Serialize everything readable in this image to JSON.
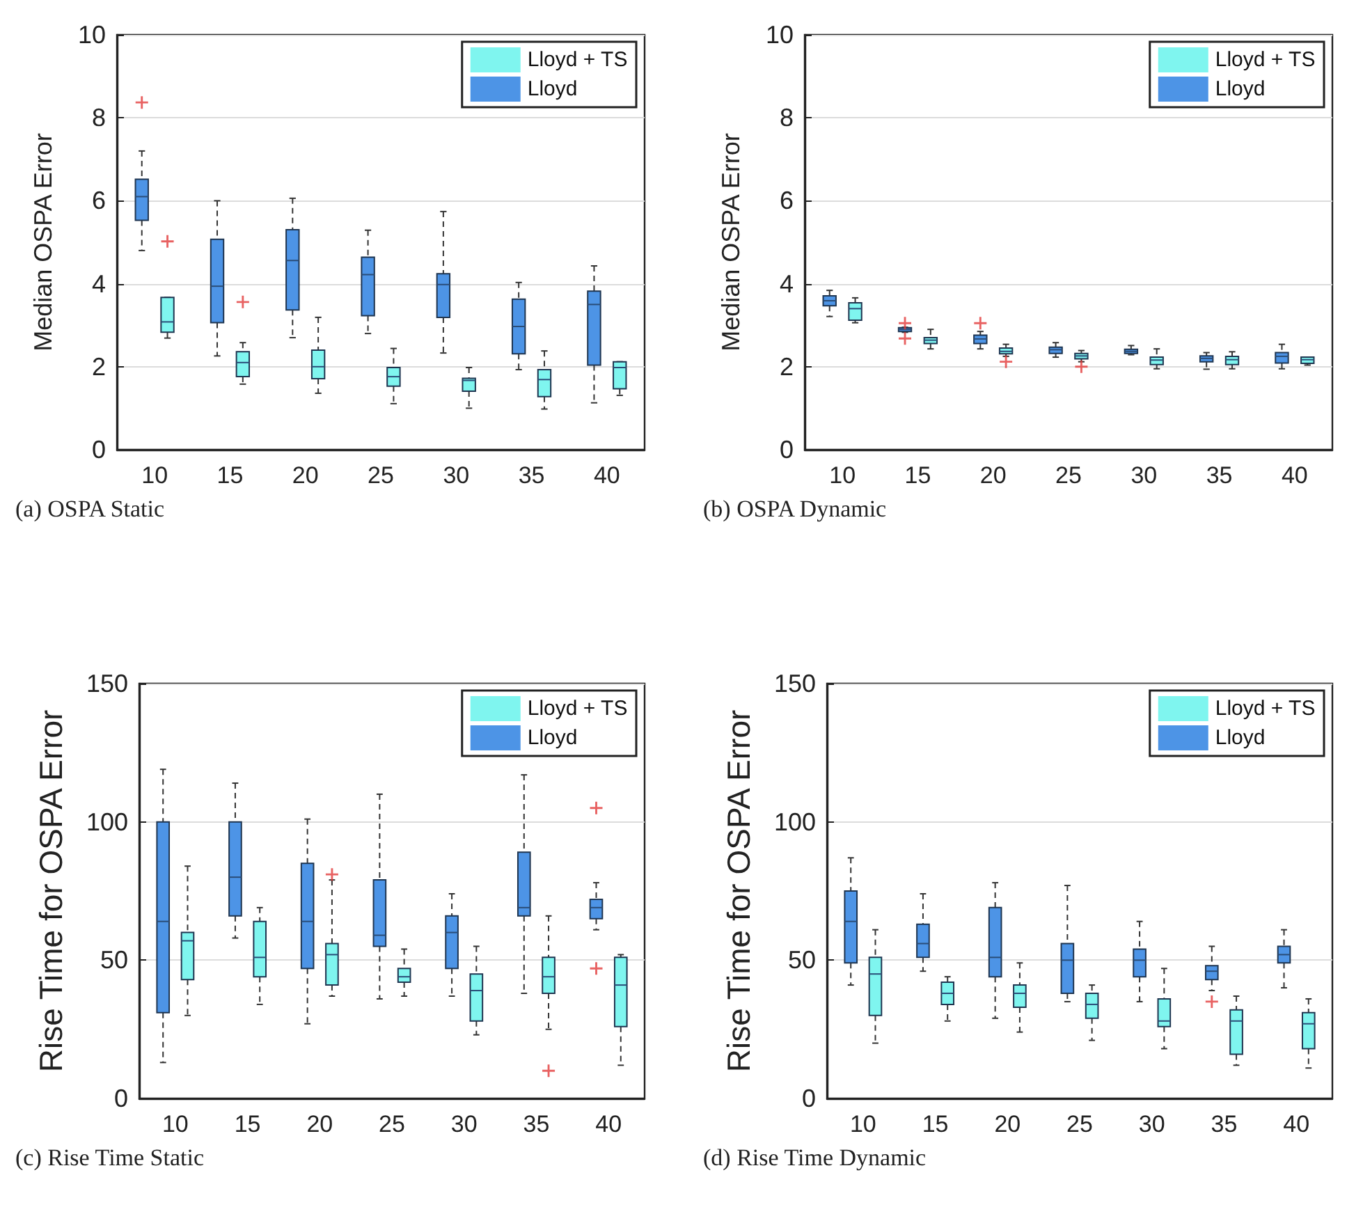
{
  "chart_data": [
    {
      "type": "box",
      "title": "(a) OSPA Static",
      "ylabel": "Median OSPA Error",
      "categories": [
        "10",
        "15",
        "20",
        "25",
        "30",
        "35",
        "40"
      ],
      "ylim": [
        0,
        10
      ],
      "yticks": [
        0,
        2,
        4,
        6,
        8,
        10
      ],
      "grid": "y",
      "legend": "top right",
      "series": [
        {
          "name": "Lloyd",
          "color": "#4d94e6",
          "boxes": [
            {
              "low": 4.8,
              "q1": 5.53,
              "median": 6.1,
              "q3": 6.52,
              "high": 7.2,
              "outliers": [
                8.37
              ]
            },
            {
              "low": 2.26,
              "q1": 3.06,
              "median": 3.94,
              "q3": 5.07,
              "high": 6.0
            },
            {
              "low": 2.7,
              "q1": 3.37,
              "median": 4.56,
              "q3": 5.3,
              "high": 6.06
            },
            {
              "low": 2.8,
              "q1": 3.23,
              "median": 4.22,
              "q3": 4.64,
              "high": 5.29
            },
            {
              "low": 2.33,
              "q1": 3.19,
              "median": 3.98,
              "q3": 4.24,
              "high": 5.74
            },
            {
              "low": 1.93,
              "q1": 2.31,
              "median": 2.97,
              "q3": 3.63,
              "high": 4.03
            },
            {
              "low": 1.13,
              "q1": 2.04,
              "median": 3.5,
              "q3": 3.82,
              "high": 4.43
            }
          ]
        },
        {
          "name": "Lloyd + TS",
          "color": "#7ff5ef",
          "boxes": [
            {
              "low": 2.69,
              "q1": 2.83,
              "median": 3.08,
              "q3": 3.67,
              "high": 3.67,
              "outliers": [
                5.02
              ]
            },
            {
              "low": 1.58,
              "q1": 1.76,
              "median": 2.1,
              "q3": 2.36,
              "high": 2.58,
              "outliers": [
                3.56
              ]
            },
            {
              "low": 1.36,
              "q1": 1.71,
              "median": 2.0,
              "q3": 2.4,
              "high": 3.19
            },
            {
              "low": 1.11,
              "q1": 1.53,
              "median": 1.76,
              "q3": 1.98,
              "high": 2.44
            },
            {
              "low": 1.0,
              "q1": 1.41,
              "median": 1.67,
              "q3": 1.72,
              "high": 1.98
            },
            {
              "low": 0.98,
              "q1": 1.28,
              "median": 1.69,
              "q3": 1.93,
              "high": 2.38
            },
            {
              "low": 1.31,
              "q1": 1.47,
              "median": 1.98,
              "q3": 2.12,
              "high": 2.12
            }
          ]
        }
      ]
    },
    {
      "type": "box",
      "title": "(b) OSPA Dynamic",
      "ylabel": "Median OSPA Error",
      "categories": [
        "10",
        "15",
        "20",
        "25",
        "30",
        "35",
        "40"
      ],
      "ylim": [
        0,
        10
      ],
      "yticks": [
        0,
        2,
        4,
        6,
        8,
        10
      ],
      "grid": "y",
      "legend": "top right",
      "series": [
        {
          "name": "Lloyd",
          "color": "#4d94e6",
          "boxes": [
            {
              "low": 3.21,
              "q1": 3.47,
              "median": 3.59,
              "q3": 3.71,
              "high": 3.84
            },
            {
              "low": 2.83,
              "q1": 2.85,
              "median": 2.9,
              "q3": 2.94,
              "high": 2.95,
              "outliers": [
                3.05,
                2.68
              ]
            },
            {
              "low": 2.43,
              "q1": 2.56,
              "median": 2.67,
              "q3": 2.76,
              "high": 2.85,
              "outliers": [
                3.05
              ]
            },
            {
              "low": 2.23,
              "q1": 2.32,
              "median": 2.41,
              "q3": 2.47,
              "high": 2.58
            },
            {
              "low": 2.29,
              "q1": 2.32,
              "median": 2.37,
              "q3": 2.42,
              "high": 2.51
            },
            {
              "low": 1.94,
              "q1": 2.12,
              "median": 2.2,
              "q3": 2.26,
              "high": 2.34
            },
            {
              "low": 1.95,
              "q1": 2.09,
              "median": 2.25,
              "q3": 2.34,
              "high": 2.54
            }
          ]
        },
        {
          "name": "Lloyd + TS",
          "color": "#7ff5ef",
          "boxes": [
            {
              "low": 3.06,
              "q1": 3.12,
              "median": 3.4,
              "q3": 3.54,
              "high": 3.66
            },
            {
              "low": 2.43,
              "q1": 2.56,
              "median": 2.64,
              "q3": 2.7,
              "high": 2.9
            },
            {
              "low": 2.25,
              "q1": 2.31,
              "median": 2.37,
              "q3": 2.45,
              "high": 2.54,
              "outliers": [
                2.12
              ]
            },
            {
              "low": 2.12,
              "q1": 2.19,
              "median": 2.26,
              "q3": 2.32,
              "high": 2.39,
              "outliers": [
                2.0
              ]
            },
            {
              "low": 1.95,
              "q1": 2.05,
              "median": 2.16,
              "q3": 2.23,
              "high": 2.43
            },
            {
              "low": 1.95,
              "q1": 2.05,
              "median": 2.17,
              "q3": 2.25,
              "high": 2.36
            },
            {
              "low": 2.04,
              "q1": 2.08,
              "median": 2.17,
              "q3": 2.23,
              "high": 2.23
            }
          ]
        }
      ]
    },
    {
      "type": "box",
      "title": "(c) Rise Time Static",
      "ylabel": "Rise Time for OSPA Error",
      "categories": [
        "10",
        "15",
        "20",
        "25",
        "30",
        "35",
        "40"
      ],
      "ylim": [
        0,
        150
      ],
      "yticks": [
        0,
        50,
        100,
        150
      ],
      "grid": "y",
      "legend": "top right",
      "series": [
        {
          "name": "Lloyd",
          "color": "#4d94e6",
          "boxes": [
            {
              "low": 13,
              "q1": 31,
              "median": 64,
              "q3": 100,
              "high": 119
            },
            {
              "low": 58,
              "q1": 66,
              "median": 80,
              "q3": 100,
              "high": 114
            },
            {
              "low": 27,
              "q1": 47,
              "median": 64,
              "q3": 85,
              "high": 101
            },
            {
              "low": 36,
              "q1": 55,
              "median": 59,
              "q3": 79,
              "high": 110
            },
            {
              "low": 37,
              "q1": 47,
              "median": 60,
              "q3": 66,
              "high": 74
            },
            {
              "low": 38,
              "q1": 66,
              "median": 69,
              "q3": 89,
              "high": 117
            },
            {
              "low": 61,
              "q1": 65,
              "median": 69,
              "q3": 72,
              "high": 78,
              "outliers": [
                105,
                47
              ]
            }
          ]
        },
        {
          "name": "Lloyd + TS",
          "color": "#7ff5ef",
          "boxes": [
            {
              "low": 30,
              "q1": 43,
              "median": 57,
              "q3": 60,
              "high": 84
            },
            {
              "low": 34,
              "q1": 44,
              "median": 51,
              "q3": 64,
              "high": 69
            },
            {
              "low": 37,
              "q1": 41,
              "median": 52,
              "q3": 56,
              "high": 79,
              "outliers": [
                81
              ]
            },
            {
              "low": 37,
              "q1": 42,
              "median": 44,
              "q3": 47,
              "high": 54
            },
            {
              "low": 23,
              "q1": 28,
              "median": 39,
              "q3": 45,
              "high": 55
            },
            {
              "low": 25,
              "q1": 38,
              "median": 44,
              "q3": 51,
              "high": 66,
              "outliers": [
                10
              ]
            },
            {
              "low": 12,
              "q1": 26,
              "median": 41,
              "q3": 51,
              "high": 52
            }
          ]
        }
      ]
    },
    {
      "type": "box",
      "title": "(d) Rise Time Dynamic",
      "ylabel": "Rise Time for OSPA Error",
      "categories": [
        "10",
        "15",
        "20",
        "25",
        "30",
        "35",
        "40"
      ],
      "ylim": [
        0,
        150
      ],
      "yticks": [
        0,
        50,
        100,
        150
      ],
      "grid": "y",
      "legend": "top right",
      "series": [
        {
          "name": "Lloyd",
          "color": "#4d94e6",
          "boxes": [
            {
              "low": 41,
              "q1": 49,
              "median": 64,
              "q3": 75,
              "high": 87
            },
            {
              "low": 46,
              "q1": 51,
              "median": 56,
              "q3": 63,
              "high": 74
            },
            {
              "low": 29,
              "q1": 44,
              "median": 51,
              "q3": 69,
              "high": 78
            },
            {
              "low": 35,
              "q1": 38,
              "median": 50,
              "q3": 56,
              "high": 77
            },
            {
              "low": 35,
              "q1": 44,
              "median": 50,
              "q3": 54,
              "high": 64
            },
            {
              "low": 39,
              "q1": 43,
              "median": 46,
              "q3": 48,
              "high": 55,
              "outliers": [
                35
              ]
            },
            {
              "low": 40,
              "q1": 49,
              "median": 52,
              "q3": 55,
              "high": 61
            }
          ]
        },
        {
          "name": "Lloyd + TS",
          "color": "#7ff5ef",
          "boxes": [
            {
              "low": 20,
              "q1": 30,
              "median": 45,
              "q3": 51,
              "high": 61
            },
            {
              "low": 28,
              "q1": 34,
              "median": 38,
              "q3": 42,
              "high": 44
            },
            {
              "low": 24,
              "q1": 33,
              "median": 38,
              "q3": 41,
              "high": 49
            },
            {
              "low": 21,
              "q1": 29,
              "median": 34,
              "q3": 38,
              "high": 41
            },
            {
              "low": 18,
              "q1": 26,
              "median": 28,
              "q3": 36,
              "high": 47
            },
            {
              "low": 12,
              "q1": 16,
              "median": 28,
              "q3": 32,
              "high": 37
            },
            {
              "low": 11,
              "q1": 18,
              "median": 27,
              "q3": 31,
              "high": 36
            }
          ]
        }
      ]
    }
  ]
}
